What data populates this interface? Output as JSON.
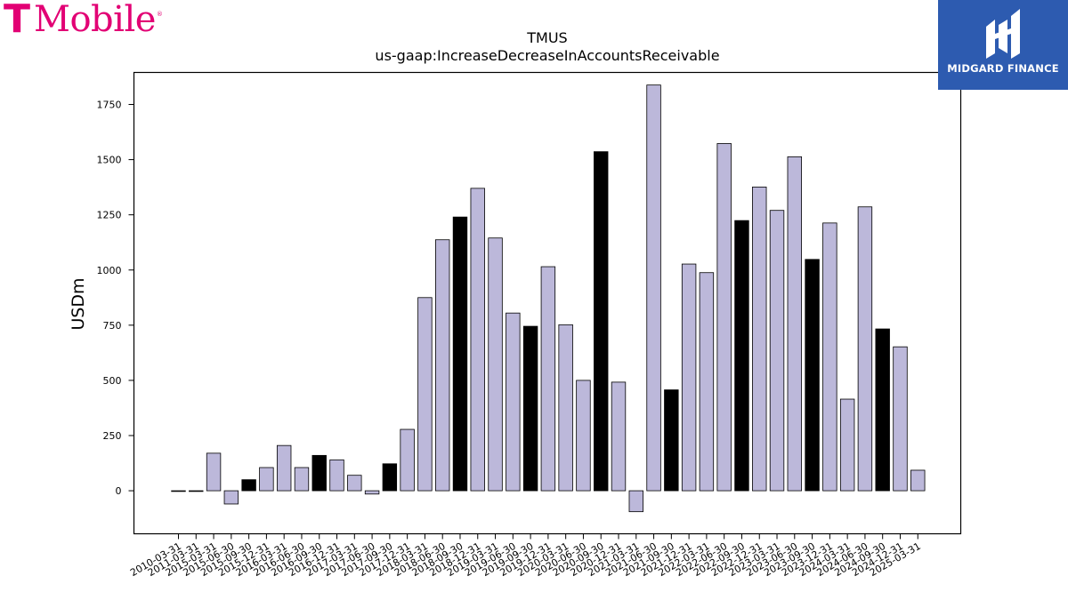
{
  "brand": {
    "t_mark": "T",
    "name": "Mobile",
    "tm": "®"
  },
  "watermark": {
    "text": "MIDGARD FINANCE"
  },
  "colors": {
    "bar_default": "#bcb8da",
    "bar_highlight": "#000000",
    "brand_magenta": "#e20074",
    "watermark_bg": "#2d5bb0"
  },
  "chart_data": {
    "type": "bar",
    "title": "TMUS",
    "subtitle": "us-gaap:IncreaseDecreaseInAccountsReceivable",
    "xlabel": "",
    "ylabel": "USDm",
    "ylim": [
      -195,
      1895
    ],
    "yticks": [
      0,
      250,
      500,
      750,
      1000,
      1250,
      1500,
      1750
    ],
    "grid": false,
    "legend": "none",
    "categories": [
      "2010-03-31",
      "2011-03-31",
      "2015-03-31",
      "2015-06-30",
      "2015-09-30",
      "2015-12-31",
      "2016-03-31",
      "2016-06-30",
      "2016-09-30",
      "2016-12-31",
      "2017-03-31",
      "2017-06-30",
      "2017-09-30",
      "2017-12-31",
      "2018-03-31",
      "2018-06-30",
      "2018-09-30",
      "2018-12-31",
      "2019-03-31",
      "2019-06-30",
      "2019-09-30",
      "2019-12-31",
      "2020-03-31",
      "2020-06-30",
      "2020-09-30",
      "2020-12-31",
      "2021-03-31",
      "2021-06-30",
      "2021-09-30",
      "2021-12-31",
      "2022-03-31",
      "2022-06-30",
      "2022-09-30",
      "2022-12-31",
      "2023-03-31",
      "2023-06-30",
      "2023-09-30",
      "2023-12-31",
      "2024-03-31",
      "2024-06-30",
      "2024-09-30",
      "2024-12-31",
      "2025-03-31"
    ],
    "values": [
      -2,
      -2,
      170,
      -60,
      50,
      105,
      205,
      105,
      160,
      140,
      70,
      -15,
      122,
      278,
      875,
      1137,
      1240,
      1370,
      1145,
      805,
      745,
      1015,
      752,
      500,
      1536,
      492,
      -95,
      1838,
      457,
      1027,
      988,
      1573,
      1224,
      1376,
      1270,
      1513,
      1048,
      1213,
      415,
      1286,
      733,
      652,
      93
    ],
    "highlight": [
      false,
      false,
      false,
      false,
      true,
      false,
      false,
      false,
      true,
      false,
      false,
      false,
      true,
      false,
      false,
      false,
      true,
      false,
      false,
      false,
      true,
      false,
      false,
      false,
      true,
      false,
      false,
      false,
      true,
      false,
      false,
      false,
      true,
      false,
      false,
      false,
      true,
      false,
      false,
      false,
      true,
      false,
      false
    ]
  }
}
